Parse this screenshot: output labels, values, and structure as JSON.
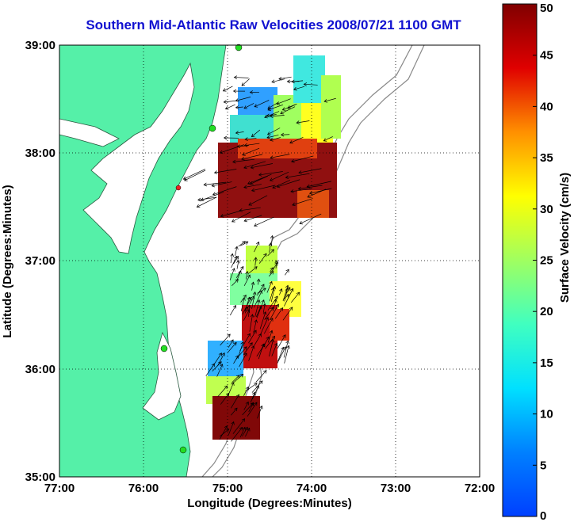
{
  "title": "Southern Mid-Atlantic Raw Velocities 2008/07/21 1100 GMT",
  "map": {
    "xlabel": "Longitude (Degrees:Minutes)",
    "ylabel": "Latitude (Degrees:Minutes)",
    "x_ticks": [
      "77:00",
      "76:00",
      "75:00",
      "74:00",
      "73:00",
      "72:00"
    ],
    "y_ticks": [
      "39:00",
      "38:00",
      "37:00",
      "36:00",
      "35:00"
    ],
    "lon_range": [
      -77,
      -72
    ],
    "lat_range": [
      35,
      39
    ]
  },
  "colorbar": {
    "label": "Surface Velocity (cm/s)",
    "ticks": [
      "0",
      "5",
      "10",
      "15",
      "20",
      "25",
      "30",
      "35",
      "40",
      "45",
      "50"
    ],
    "range": [
      0,
      50
    ]
  },
  "colors": {
    "land": "#55f0a8",
    "title": "#1010d0",
    "station_green": "#22dd22",
    "station_red": "#ee2222"
  }
}
